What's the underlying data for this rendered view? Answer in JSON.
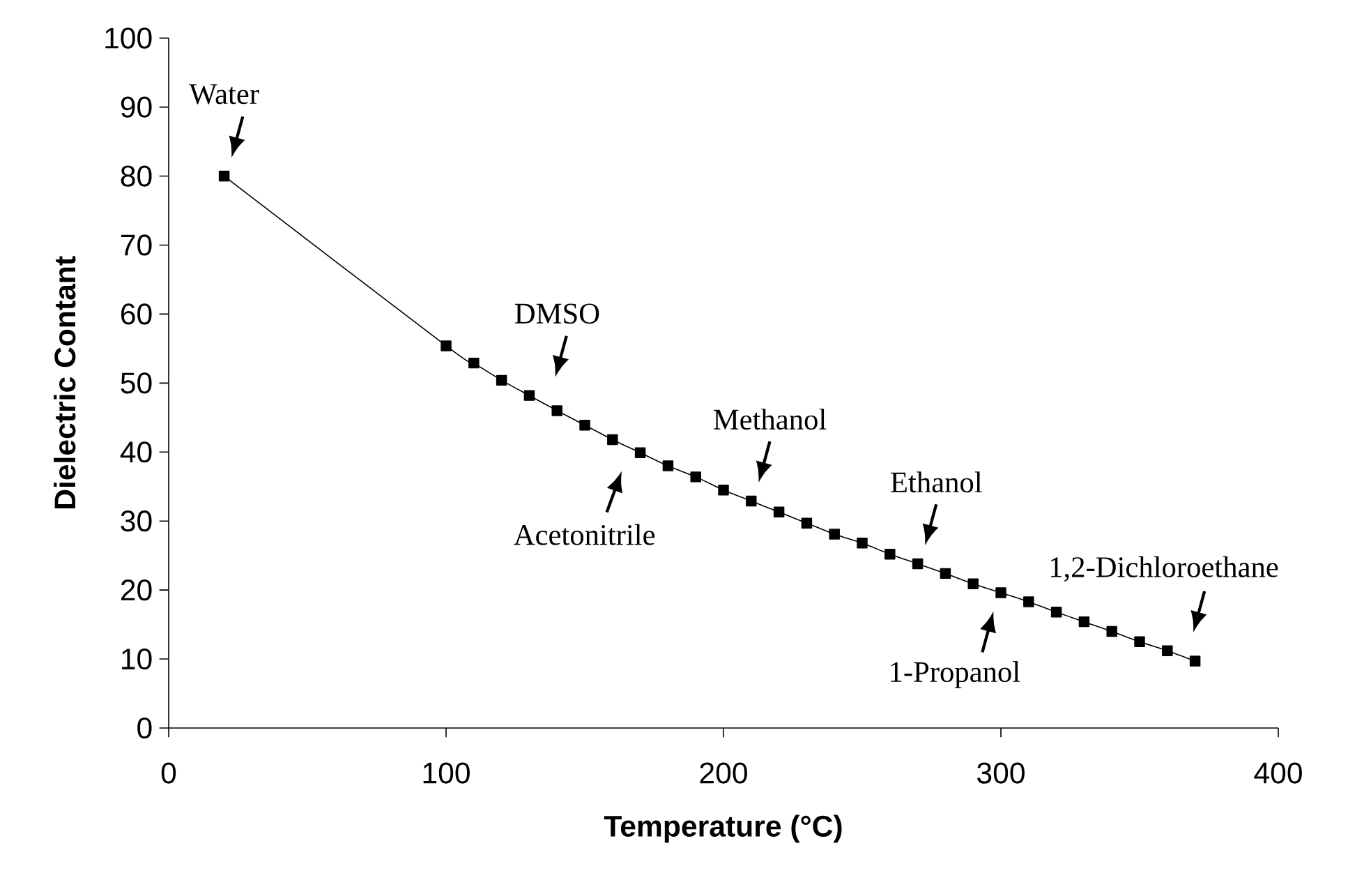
{
  "chart_data": {
    "type": "line",
    "xlabel": "Temperature (°C)",
    "ylabel": "Dielectric Contant",
    "xlim": [
      0,
      400
    ],
    "ylim": [
      0,
      100
    ],
    "xticks": [
      0,
      100,
      200,
      300,
      400
    ],
    "yticks": [
      0,
      10,
      20,
      30,
      40,
      50,
      60,
      70,
      80,
      90,
      100
    ],
    "x": [
      20,
      100,
      110,
      120,
      130,
      140,
      150,
      160,
      170,
      180,
      190,
      200,
      210,
      220,
      230,
      240,
      250,
      260,
      270,
      280,
      290,
      300,
      310,
      320,
      330,
      340,
      350,
      360,
      370
    ],
    "series": [
      {
        "color": "#000000",
        "values": [
          80,
          55.4,
          52.9,
          50.4,
          48.2,
          46.0,
          43.9,
          41.8,
          39.9,
          38.0,
          36.4,
          34.5,
          32.9,
          31.3,
          29.7,
          28.1,
          26.8,
          25.2,
          23.8,
          22.4,
          20.9,
          19.6,
          18.3,
          16.8,
          15.4,
          14.0,
          12.5,
          11.2,
          9.7
        ]
      }
    ],
    "marker": "square",
    "line_style": "solid",
    "annotations": [
      {
        "text": "Water",
        "x": 20,
        "y": 80
      },
      {
        "text": "DMSO",
        "x": 130,
        "y": 48.2
      },
      {
        "text": "Acetonitrile",
        "x": 170,
        "y": 39.9
      },
      {
        "text": "Methanol",
        "x": 210,
        "y": 32.9
      },
      {
        "text": "Ethanol",
        "x": 270,
        "y": 23.8
      },
      {
        "text": "1-Propanol",
        "x": 300,
        "y": 19.6
      },
      {
        "text": "1,2-Dichloroethane",
        "x": 360,
        "y": 11.2
      }
    ]
  }
}
